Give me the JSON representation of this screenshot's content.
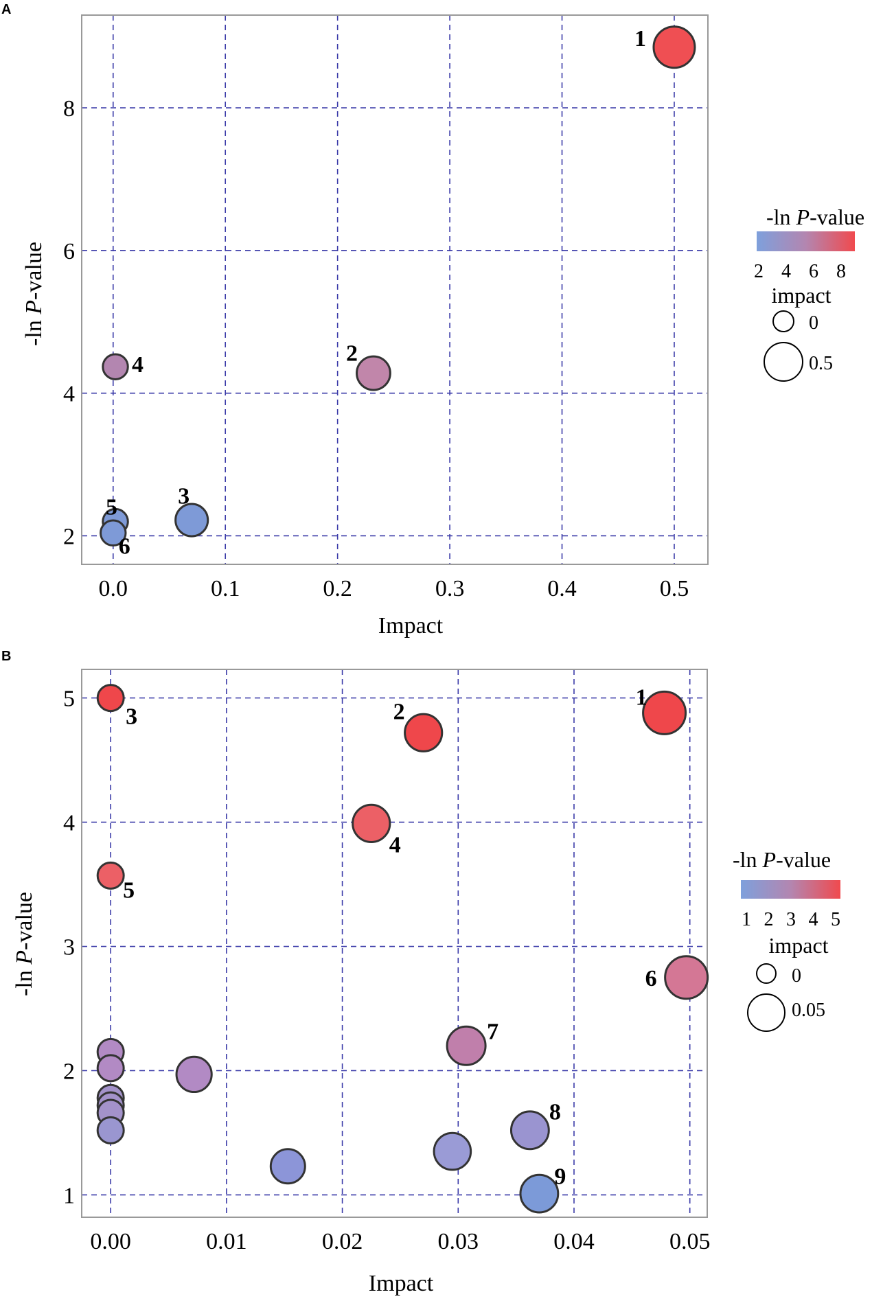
{
  "chart_data": [
    {
      "panel": "A",
      "type": "scatter",
      "xlabel": "Impact",
      "ylabel_prefix": "-ln ",
      "ylabel_italic": "P",
      "ylabel_suffix": "-value",
      "xlim": [
        -0.028,
        0.53
      ],
      "ylim": [
        1.6,
        9.3
      ],
      "xticks": [
        0.0,
        0.1,
        0.2,
        0.3,
        0.4,
        0.5
      ],
      "xtick_labels": [
        "0.0",
        "0.1",
        "0.2",
        "0.3",
        "0.4",
        "0.5"
      ],
      "yticks": [
        2,
        4,
        6,
        8
      ],
      "ytick_labels": [
        "2",
        "4",
        "6",
        "8"
      ],
      "color_range": [
        2,
        9
      ],
      "size_range": [
        0,
        0.5
      ],
      "points": [
        {
          "label": "1",
          "x": 0.5,
          "y": 8.85,
          "size": 0.5,
          "color": "#ef4f53"
        },
        {
          "label": "2",
          "x": 0.232,
          "y": 4.28,
          "size": 0.3,
          "color": "#c186aa"
        },
        {
          "label": "3",
          "x": 0.07,
          "y": 2.22,
          "size": 0.27,
          "color": "#7e9ad7"
        },
        {
          "label": "4",
          "x": 0.002,
          "y": 4.37,
          "size": 0.08,
          "color": "#b386b0"
        },
        {
          "label": "5",
          "x": 0.002,
          "y": 2.2,
          "size": 0.08,
          "color": "#7e9ad7"
        },
        {
          "label": "6",
          "x": 0.0,
          "y": 2.04,
          "size": 0.08,
          "color": "#7e9ad7"
        }
      ],
      "legend": {
        "color_title_prefix": "-ln ",
        "color_title_italic": "P",
        "color_title_suffix": "-value",
        "color_ticks": [
          "2",
          "4",
          "6",
          "8"
        ],
        "size_title": "impact",
        "size_labels": [
          "0",
          "0.5"
        ],
        "colors": [
          "#7ea0dc",
          "#b386b0",
          "#f04a4e"
        ]
      }
    },
    {
      "panel": "B",
      "type": "scatter",
      "xlabel": "Impact",
      "ylabel_prefix": "-ln ",
      "ylabel_italic": "P",
      "ylabel_suffix": "-value",
      "xlim": [
        -0.0025,
        0.0515
      ],
      "ylim": [
        0.82,
        5.23
      ],
      "xticks": [
        0.0,
        0.01,
        0.02,
        0.03,
        0.04,
        0.05
      ],
      "xtick_labels": [
        "0.00",
        "0.01",
        "0.02",
        "0.03",
        "0.04",
        "0.05"
      ],
      "yticks": [
        1,
        2,
        3,
        4,
        5
      ],
      "ytick_labels": [
        "1",
        "2",
        "3",
        "4",
        "5"
      ],
      "color_range": [
        1,
        5
      ],
      "size_range": [
        0,
        0.05
      ],
      "points": [
        {
          "label": "1",
          "x": 0.0478,
          "y": 4.88,
          "size": 0.05,
          "color": "#ef474b"
        },
        {
          "label": "2",
          "x": 0.027,
          "y": 4.72,
          "size": 0.037,
          "color": "#ef474b"
        },
        {
          "label": "3",
          "x": 0.0,
          "y": 5.0,
          "size": 0.01,
          "color": "#ef474b"
        },
        {
          "label": "4",
          "x": 0.0225,
          "y": 3.99,
          "size": 0.037,
          "color": "#ec6066"
        },
        {
          "label": "5",
          "x": 0.0,
          "y": 3.57,
          "size": 0.01,
          "color": "#ec6066"
        },
        {
          "label": "6",
          "x": 0.0497,
          "y": 2.75,
          "size": 0.05,
          "color": "#d47795"
        },
        {
          "label": "7",
          "x": 0.0307,
          "y": 2.2,
          "size": 0.04,
          "color": "#c07fab"
        },
        {
          "label": "8",
          "x": 0.0362,
          "y": 1.52,
          "size": 0.038,
          "color": "#9a94d0"
        },
        {
          "label": "9",
          "x": 0.037,
          "y": 1.01,
          "size": 0.038,
          "color": "#7c9ad8"
        },
        {
          "label": "",
          "x": 0.0295,
          "y": 1.35,
          "size": 0.036,
          "color": "#9a9bd6"
        },
        {
          "label": "",
          "x": 0.0153,
          "y": 1.23,
          "size": 0.03,
          "color": "#8c95d8"
        },
        {
          "label": "",
          "x": 0.0072,
          "y": 1.97,
          "size": 0.032,
          "color": "#b28ac4"
        },
        {
          "label": "",
          "x": 0.0,
          "y": 2.15,
          "size": 0.01,
          "color": "#b28ac4"
        },
        {
          "label": "",
          "x": 0.0,
          "y": 2.02,
          "size": 0.01,
          "color": "#b28ac4"
        },
        {
          "label": "",
          "x": 0.0,
          "y": 1.78,
          "size": 0.01,
          "color": "#a392ca"
        },
        {
          "label": "",
          "x": 0.0,
          "y": 1.72,
          "size": 0.01,
          "color": "#a392ca"
        },
        {
          "label": "",
          "x": 0.0,
          "y": 1.66,
          "size": 0.01,
          "color": "#a392ca"
        },
        {
          "label": "",
          "x": 0.0,
          "y": 1.52,
          "size": 0.01,
          "color": "#9a96d0"
        }
      ],
      "legend": {
        "color_title_prefix": "-ln ",
        "color_title_italic": "P",
        "color_title_suffix": "-value",
        "color_ticks": [
          "1",
          "2",
          "3",
          "4",
          "5"
        ],
        "size_title": "impact",
        "size_labels": [
          "0",
          "0.05"
        ],
        "colors": [
          "#7ea0dc",
          "#b386b0",
          "#f04a4e"
        ]
      }
    }
  ]
}
